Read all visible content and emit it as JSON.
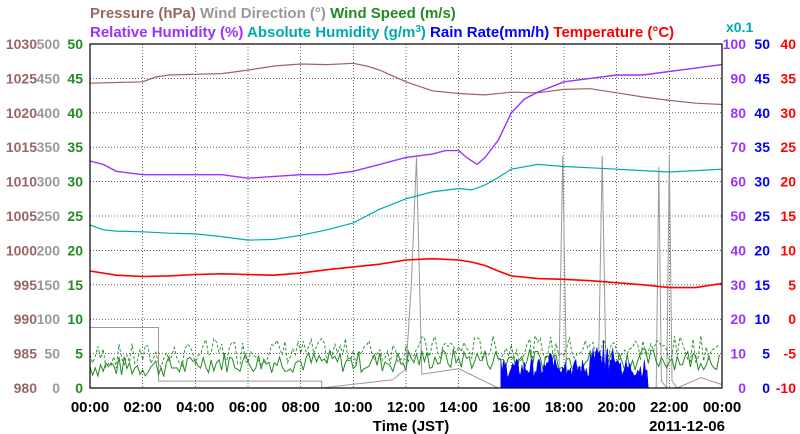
{
  "chart_data": {
    "type": "line",
    "date_label": "2011-12-06",
    "xlabel": "Time (JST)",
    "x_ticks": [
      "00:00",
      "02:00",
      "04:00",
      "06:00",
      "08:00",
      "10:00",
      "12:00",
      "14:00",
      "16:00",
      "18:00",
      "20:00",
      "22:00",
      "00:00"
    ],
    "x_hours": [
      0,
      24
    ],
    "extra_label": "x0.1",
    "axes": [
      {
        "name": "Pressure",
        "unit": "hPa",
        "color": "#996666",
        "ticks": [
          "980",
          "985",
          "990",
          "995",
          "1000",
          "1005",
          "1010",
          "1015",
          "1020",
          "1025",
          "1030"
        ],
        "range": [
          980,
          1030
        ]
      },
      {
        "name": "Wind Direction",
        "unit": "°",
        "color": "#999999",
        "ticks": [
          "0",
          "50",
          "100",
          "150",
          "200",
          "250",
          "300",
          "350",
          "400",
          "450",
          "500"
        ],
        "range": [
          0,
          500
        ]
      },
      {
        "name": "Wind Speed",
        "unit": "m/s",
        "color": "#228B22",
        "ticks": [
          "0",
          "5",
          "10",
          "15",
          "20",
          "25",
          "30",
          "35",
          "40",
          "45",
          "50"
        ],
        "range": [
          0,
          50
        ]
      },
      {
        "name": "Relative Humidity",
        "unit": "%",
        "color": "#9933ff",
        "ticks": [
          "0",
          "10",
          "20",
          "30",
          "40",
          "50",
          "60",
          "70",
          "80",
          "90",
          "100"
        ],
        "range": [
          0,
          100
        ]
      },
      {
        "name": "Absolute Humidity",
        "unit": "g/m3",
        "color": "#00aaaa",
        "ticks": [
          "0",
          "5",
          "10",
          "15",
          "20",
          "25",
          "30",
          "35",
          "40",
          "45",
          "50"
        ],
        "range": [
          0,
          50
        ]
      },
      {
        "name": "Rain Rate",
        "unit": "mm/h",
        "color": "#0000ff",
        "ticks": [
          "0",
          "5",
          "10",
          "15",
          "20",
          "25",
          "30",
          "35",
          "40",
          "45",
          "50"
        ],
        "range": [
          0,
          50
        ]
      },
      {
        "name": "Temperature",
        "unit": "°C",
        "color": "#ff0000",
        "ticks": [
          "-10",
          "-5",
          "0",
          "5",
          "10",
          "15",
          "20",
          "25",
          "30",
          "35",
          "40"
        ],
        "range": [
          -10,
          40
        ]
      }
    ],
    "legend": {
      "row1": [
        {
          "text": "Pressure (hPa)",
          "color": "#996666"
        },
        {
          "text": "Wind Direction (°)",
          "color": "#999999"
        },
        {
          "text": "Wind Speed (m/s)",
          "color": "#228B22"
        }
      ],
      "row2": [
        {
          "text": "Relative Humidity (%)",
          "color": "#9933ff"
        },
        {
          "text": "Absolute Humidity (g/m",
          "sup": "3",
          "tail": ")",
          "color": "#00aaaa"
        },
        {
          "text": "Rain Rate(mm/h)",
          "color": "#0000ff"
        },
        {
          "text": "Temperature (°C)",
          "color": "#ff0000"
        }
      ]
    },
    "series": {
      "pressure": {
        "hours": [
          0,
          1,
          2,
          2.5,
          3,
          4,
          5,
          6,
          7,
          8,
          9,
          10,
          10.5,
          11,
          12,
          13,
          14,
          15,
          16,
          17,
          18,
          19,
          20,
          21,
          22,
          23,
          24
        ],
        "values": [
          1024.3,
          1024.4,
          1024.5,
          1025.2,
          1025.5,
          1025.6,
          1025.7,
          1026.2,
          1026.8,
          1027.1,
          1027.0,
          1027.2,
          1026.8,
          1026.2,
          1024.5,
          1023.2,
          1022.8,
          1022.6,
          1023.0,
          1022.9,
          1023.4,
          1023.5,
          1022.9,
          1022.3,
          1021.8,
          1021.4,
          1021.2
        ]
      },
      "rh": {
        "hours": [
          0,
          0.5,
          1,
          2,
          3,
          4,
          5,
          6,
          7,
          8,
          9,
          10,
          11,
          12,
          13,
          13.5,
          14,
          14.3,
          14.7,
          15,
          15.5,
          16,
          16.5,
          17,
          18,
          19,
          20,
          21,
          22,
          23,
          24
        ],
        "values": [
          66,
          65,
          63,
          62,
          62,
          62,
          62,
          61,
          61.5,
          62,
          62,
          63,
          65,
          67,
          68,
          69,
          69,
          67,
          65,
          67,
          72,
          80,
          84,
          86,
          89,
          90,
          91,
          91,
          92,
          93,
          94
        ]
      },
      "abs_hum": {
        "hours": [
          0,
          0.5,
          1,
          2,
          3,
          4,
          5,
          6,
          7,
          8,
          9,
          10,
          11,
          12,
          13,
          14,
          14.5,
          15,
          15.5,
          16,
          17,
          18,
          19,
          20,
          21,
          22,
          23,
          24
        ],
        "values": [
          23.7,
          23.0,
          22.8,
          22.7,
          22.5,
          22.4,
          22.0,
          21.5,
          21.6,
          22.2,
          23.0,
          24.0,
          26.0,
          27.5,
          28.5,
          29.0,
          28.8,
          29.5,
          30.6,
          31.8,
          32.5,
          32.2,
          32.0,
          31.8,
          31.6,
          31.4,
          31.6,
          31.8
        ]
      },
      "temperature": {
        "hours": [
          0,
          1,
          2,
          3,
          4,
          5,
          6,
          7,
          8,
          9,
          10,
          11,
          12,
          13,
          14,
          14.5,
          15,
          15.5,
          16,
          17,
          18,
          19,
          20,
          21,
          22,
          23,
          24
        ],
        "values": [
          7.0,
          6.4,
          6.2,
          6.3,
          6.5,
          6.6,
          6.5,
          6.4,
          6.7,
          7.2,
          7.6,
          8.0,
          8.6,
          8.8,
          8.6,
          8.3,
          7.8,
          7.0,
          6.3,
          5.9,
          5.8,
          5.6,
          5.3,
          5.0,
          4.6,
          4.6,
          5.2
        ]
      },
      "wind_dir": {
        "hours": [
          0,
          2.6,
          2.6,
          8.8,
          8.8,
          11.5,
          12.0,
          12.2,
          12.4,
          12.6,
          14.0,
          15.5,
          17.8,
          17.95,
          18.1,
          18.3,
          19.3,
          19.45,
          19.6,
          19.8,
          21.5,
          21.6,
          21.7,
          21.9,
          22.0,
          22.1,
          22.3,
          23.2,
          24
        ],
        "values": [
          88,
          88,
          10,
          10,
          0,
          12,
          28,
          150,
          335,
          20,
          28,
          0,
          0,
          337,
          8,
          0,
          0,
          338,
          14,
          0,
          0,
          322,
          10,
          0,
          337,
          10,
          0,
          15,
          5
        ]
      }
    },
    "annotation": {
      "rain_start_hour": 15.6,
      "rain_end_hour": 21.2
    }
  }
}
